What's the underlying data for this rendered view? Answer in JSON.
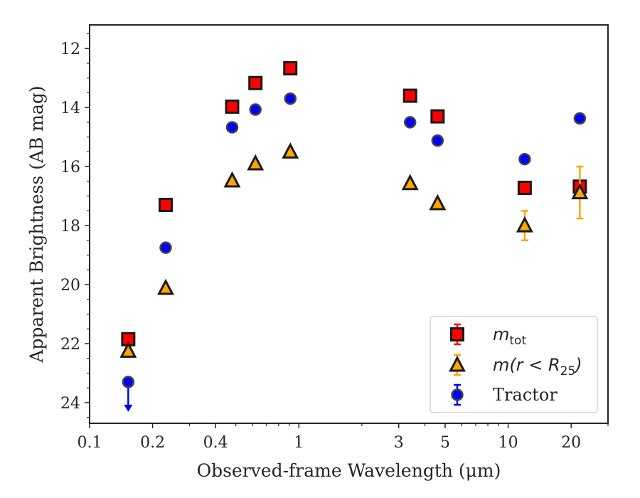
{
  "chart_data": {
    "type": "scatter",
    "title": "",
    "xlabel": "Observed-frame Wavelength (μm)",
    "ylabel": "Apparent Brightness (AB mag)",
    "xscale": "log",
    "xlim": [
      0.1,
      30
    ],
    "ylim": [
      24.7,
      11.2
    ],
    "y_inverted": true,
    "x_major_ticks": [
      0.1,
      0.2,
      0.4,
      1,
      3,
      5,
      10,
      20
    ],
    "x_tick_labels": [
      "0.1",
      "0.2",
      "0.4",
      "1",
      "3",
      "5",
      "10",
      "20"
    ],
    "x_minor_ticks": [
      0.3,
      0.5,
      0.6,
      0.7,
      0.8,
      0.9,
      2,
      4,
      6,
      7,
      8,
      9,
      30
    ],
    "y_ticks": [
      12,
      14,
      16,
      18,
      20,
      22,
      24
    ],
    "y_tick_labels": [
      "12",
      "14",
      "16",
      "18",
      "20",
      "22",
      "24"
    ],
    "y_minor_ticks": [
      11.5,
      12.5,
      13,
      13.5,
      14.5,
      15,
      15.5,
      16.5,
      17,
      17.5,
      18.5,
      19,
      19.5,
      20.5,
      21,
      21.5,
      22.5,
      23,
      23.5,
      24.5
    ],
    "grid": false,
    "legend_position": "lower-right",
    "series": [
      {
        "name_main": "m",
        "name_sub": "tot",
        "marker": "square",
        "color": "#ff0000",
        "edge_color": "#1a1a1a",
        "errorbar_color": "#ff0000",
        "points": [
          {
            "x": 0.153,
            "y": 21.85
          },
          {
            "x": 0.231,
            "y": 17.3
          },
          {
            "x": 0.48,
            "y": 13.97
          },
          {
            "x": 0.62,
            "y": 13.17
          },
          {
            "x": 0.91,
            "y": 12.67
          },
          {
            "x": 3.4,
            "y": 13.6
          },
          {
            "x": 4.6,
            "y": 14.3
          },
          {
            "x": 12.0,
            "y": 16.72
          },
          {
            "x": 22.0,
            "y": 16.68
          }
        ]
      },
      {
        "name_main": "m(r < R",
        "name_sub": "25",
        "name_tail": ")",
        "marker": "triangle",
        "color": "#ffa500",
        "edge_color": "#1a1a1a",
        "errorbar_color": "#ffa500",
        "points": [
          {
            "x": 0.153,
            "y": 22.25
          },
          {
            "x": 0.231,
            "y": 20.12
          },
          {
            "x": 0.48,
            "y": 16.48
          },
          {
            "x": 0.62,
            "y": 15.9
          },
          {
            "x": 0.91,
            "y": 15.5
          },
          {
            "x": 3.4,
            "y": 16.57
          },
          {
            "x": 4.6,
            "y": 17.25
          },
          {
            "x": 12.0,
            "y": 18.0,
            "err": 0.5
          },
          {
            "x": 22.0,
            "y": 16.88,
            "err": 0.88
          }
        ]
      },
      {
        "name": "Tractor",
        "marker": "circle",
        "color": "#0000ff",
        "edge_color": "#444444",
        "errorbar_color": "#0000ff",
        "points": [
          {
            "x": 0.153,
            "y": 23.3,
            "upper_limit": true
          },
          {
            "x": 0.231,
            "y": 18.75
          },
          {
            "x": 0.48,
            "y": 14.67
          },
          {
            "x": 0.62,
            "y": 14.07
          },
          {
            "x": 0.91,
            "y": 13.7
          },
          {
            "x": 3.4,
            "y": 14.5
          },
          {
            "x": 4.6,
            "y": 15.12
          },
          {
            "x": 12.0,
            "y": 15.75
          },
          {
            "x": 22.0,
            "y": 14.37
          }
        ]
      }
    ],
    "legend": [
      {
        "main": "m",
        "sub": "tot",
        "tail": ""
      },
      {
        "main": "m(r < R",
        "sub": "25",
        "tail": ")"
      },
      {
        "text": "Tractor"
      }
    ]
  }
}
